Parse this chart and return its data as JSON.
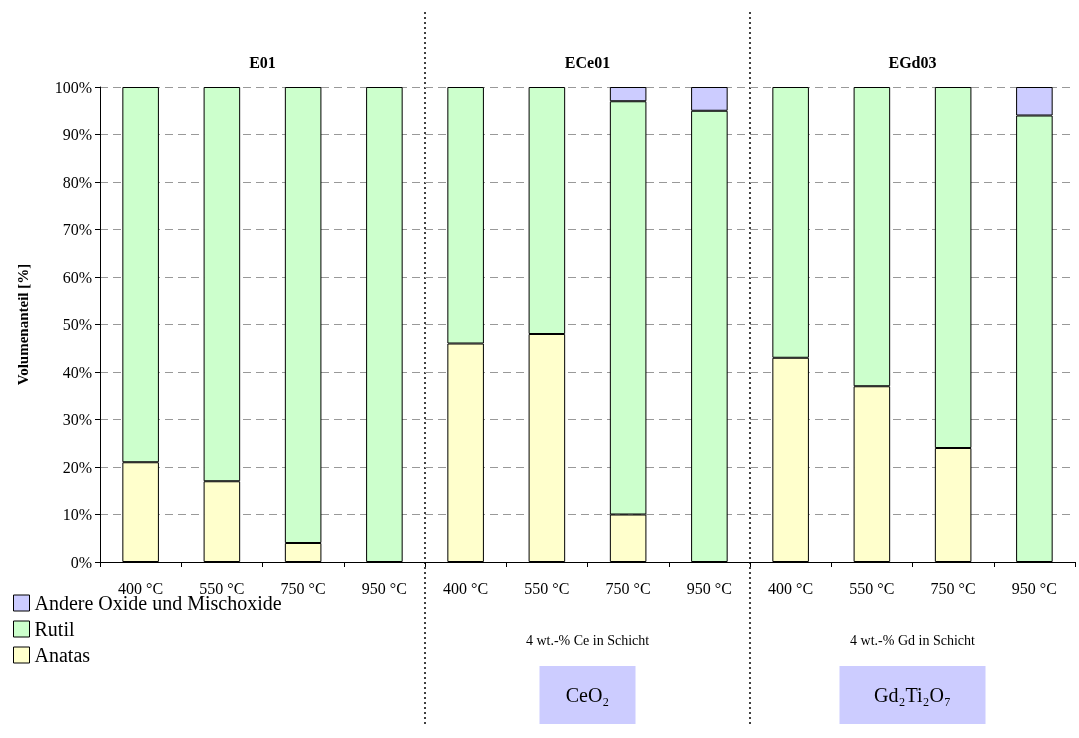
{
  "chart_data": {
    "type": "bar",
    "stacked": true,
    "ylabel": "Volumenanteil [%]",
    "categories": [
      "400 °C",
      "550 °C",
      "750 °C",
      "950 °C",
      "400 °C",
      "550 °C",
      "750 °C",
      "950 °C",
      "400 °C",
      "550 °C",
      "750 °C",
      "950 °C"
    ],
    "series": [
      {
        "name": "Anatas",
        "color": "#ffffcc",
        "values": [
          21,
          17,
          4,
          null,
          46,
          48,
          10,
          null,
          43,
          37,
          24,
          null
        ]
      },
      {
        "name": "Rutil",
        "color": "#ccffcc",
        "values": [
          79,
          83,
          96,
          100,
          54,
          52,
          87,
          95,
          57,
          63,
          76,
          94
        ]
      },
      {
        "name": "Andere Oxide und Mischoxide",
        "color": "#ccccff",
        "values": [
          null,
          null,
          null,
          null,
          null,
          null,
          3,
          5,
          null,
          null,
          null,
          6
        ]
      }
    ],
    "ylim": [
      0,
      100
    ],
    "yticks": [
      {
        "value": 0,
        "label": "0%"
      },
      {
        "value": 10,
        "label": "10%"
      },
      {
        "value": 20,
        "label": "20%"
      },
      {
        "value": 30,
        "label": "30%"
      },
      {
        "value": 40,
        "label": "40%"
      },
      {
        "value": 50,
        "label": "50%"
      },
      {
        "value": 60,
        "label": "60%"
      },
      {
        "value": 70,
        "label": "70%"
      },
      {
        "value": 80,
        "label": "80%"
      },
      {
        "value": 90,
        "label": "90%"
      },
      {
        "value": 100,
        "label": "100%"
      }
    ],
    "grid": "y",
    "legend": "bottom left",
    "annotations": [
      "E01",
      "ECe01",
      "EGd03",
      "4 wt.-% Ce in Schicht",
      "4 wt.-% Gd in Schicht",
      "CeO₂",
      "Gd₂Ti₂O₇"
    ]
  }
}
